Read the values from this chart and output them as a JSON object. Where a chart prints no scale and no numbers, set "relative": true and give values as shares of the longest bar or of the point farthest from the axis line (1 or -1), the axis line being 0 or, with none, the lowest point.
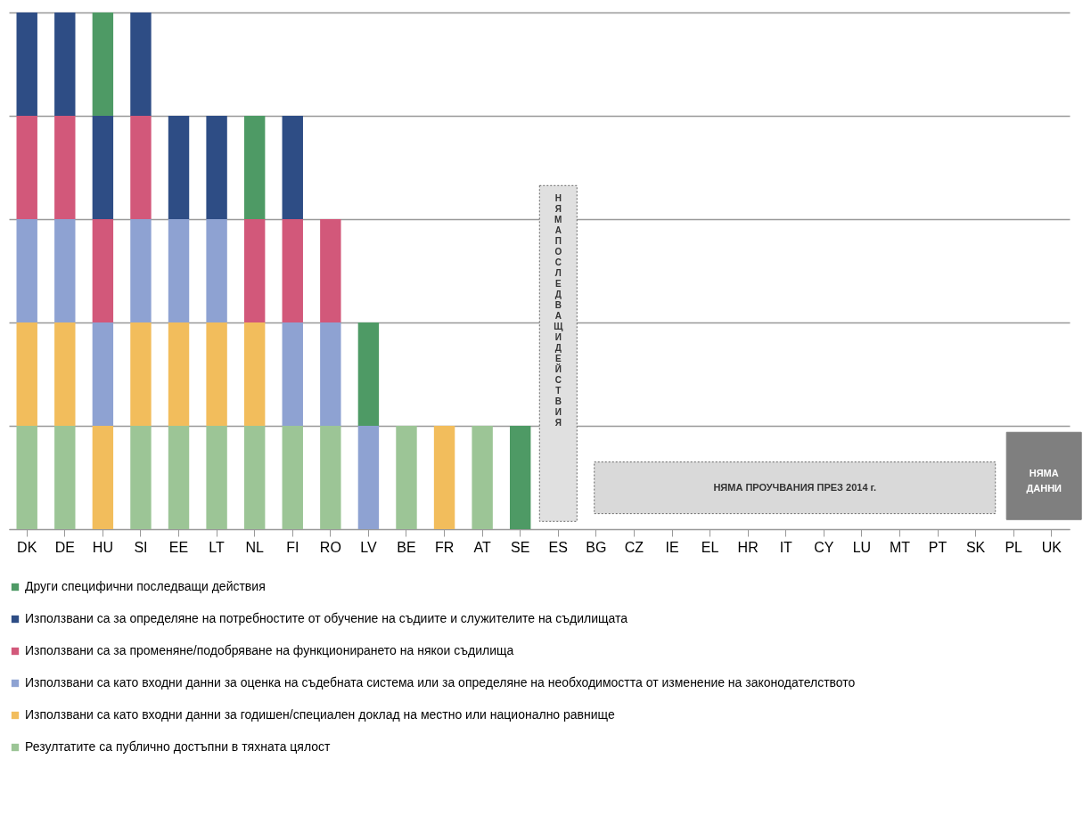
{
  "chart_data": {
    "type": "bar",
    "stacked": true,
    "relative": true,
    "grid": "y",
    "legend": "bottom",
    "categories": [
      "DK",
      "DE",
      "HU",
      "SI",
      "EE",
      "LT",
      "NL",
      "FI",
      "RO",
      "LV",
      "BE",
      "FR",
      "AT",
      "SE",
      "ES",
      "BG",
      "CZ",
      "IE",
      "EL",
      "HR",
      "IT",
      "CY",
      "LU",
      "MT",
      "PT",
      "SK",
      "PL",
      "UK"
    ],
    "series": [
      {
        "name": "Резултатите са публично достъпни в тяхната цялост",
        "color": "#9cc596",
        "values": [
          0.2,
          0.2,
          null,
          0.2,
          0.2,
          0.2,
          0.2,
          0.2,
          0.2,
          null,
          0.2,
          null,
          0.2,
          null,
          null,
          null,
          null,
          null,
          null,
          null,
          null,
          null,
          null,
          null,
          null,
          null,
          null,
          null
        ]
      },
      {
        "name": "Използвани са като входни данни за годишен/специален доклад на местно или национално равнище",
        "color": "#f2bd5c",
        "values": [
          0.2,
          0.2,
          0.2,
          0.2,
          0.2,
          0.2,
          0.2,
          null,
          null,
          null,
          null,
          0.2,
          null,
          null,
          null,
          null,
          null,
          null,
          null,
          null,
          null,
          null,
          null,
          null,
          null,
          null,
          null,
          null
        ]
      },
      {
        "name": "Използвани са като входни данни за оценка на съдебната система или за определяне на необходимостта от изменение на законодателството",
        "color": "#8ea2d2",
        "values": [
          0.2,
          0.2,
          0.2,
          0.2,
          0.2,
          0.2,
          null,
          0.2,
          0.2,
          0.2,
          null,
          null,
          null,
          null,
          null,
          null,
          null,
          null,
          null,
          null,
          null,
          null,
          null,
          null,
          null,
          null,
          null,
          null
        ]
      },
      {
        "name": "Използвани са за променяне/подобряване  на функционирането на някои съдилища",
        "color": "#d2587a",
        "values": [
          0.2,
          0.2,
          0.2,
          0.2,
          null,
          null,
          0.2,
          0.2,
          0.2,
          null,
          null,
          null,
          null,
          null,
          null,
          null,
          null,
          null,
          null,
          null,
          null,
          null,
          null,
          null,
          null,
          null,
          null,
          null
        ]
      },
      {
        "name": "Използвани са за определяне на потребностите от обучение на съдиите и служителите на съдилищата",
        "color": "#2e4d85",
        "values": [
          0.2,
          0.2,
          0.2,
          0.2,
          0.2,
          0.2,
          null,
          0.2,
          null,
          null,
          null,
          null,
          null,
          null,
          null,
          null,
          null,
          null,
          null,
          null,
          null,
          null,
          null,
          null,
          null,
          null,
          null,
          null
        ]
      },
      {
        "name": "Други специфични последващи действия",
        "color": "#4e9a65",
        "values": [
          null,
          null,
          0.2,
          null,
          null,
          null,
          0.2,
          null,
          null,
          0.2,
          null,
          null,
          null,
          0.2,
          null,
          null,
          null,
          null,
          null,
          null,
          null,
          null,
          null,
          null,
          null,
          null,
          null,
          null
        ]
      }
    ],
    "annotations": [
      "НЯМА ПОСЛЕДВАЩИ ДЕЙСТВИЯ",
      "НЯМА ПРОУЧВАНИЯ ПРЕЗ 2014 г.",
      "НЯМА ДАННИ"
    ]
  }
}
